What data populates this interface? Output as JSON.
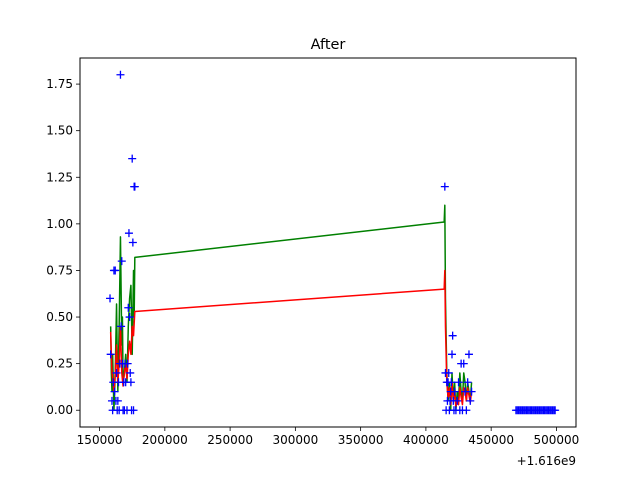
{
  "chart_data": {
    "type": "line",
    "title": "After",
    "xlabel": "",
    "ylabel": "",
    "x_offset_label": "+1.616e9",
    "xlim": [
      135000,
      515000
    ],
    "ylim": [
      -0.09,
      1.89
    ],
    "x_ticks": [
      150000,
      200000,
      250000,
      300000,
      350000,
      400000,
      450000,
      500000
    ],
    "y_ticks": [
      0.0,
      0.25,
      0.5,
      0.75,
      1.0,
      1.25,
      1.5,
      1.75
    ],
    "x_tick_labels": [
      "150000",
      "200000",
      "250000",
      "300000",
      "350000",
      "400000",
      "450000",
      "500000"
    ],
    "y_tick_labels": [
      "0.00",
      "0.25",
      "0.50",
      "0.75",
      "1.00",
      "1.25",
      "1.50",
      "1.75"
    ],
    "grid": false,
    "series": [
      {
        "style": "markers",
        "marker": "+",
        "color": "#0000ff",
        "points": [
          [
            158000,
            0.6
          ],
          [
            158500,
            0.3
          ],
          [
            159500,
            0.05
          ],
          [
            160000,
            0.0
          ],
          [
            160500,
            0.15
          ],
          [
            161000,
            0.75
          ],
          [
            161500,
            0.1
          ],
          [
            162000,
            0.75
          ],
          [
            162500,
            0.05
          ],
          [
            163000,
            0.2
          ],
          [
            163500,
            0.0
          ],
          [
            164000,
            0.05
          ],
          [
            164500,
            0.15
          ],
          [
            165000,
            0.0
          ],
          [
            165500,
            0.25
          ],
          [
            166000,
            1.8
          ],
          [
            166500,
            0.45
          ],
          [
            167000,
            0.8
          ],
          [
            167500,
            0.25
          ],
          [
            168000,
            0.0
          ],
          [
            168500,
            0.15
          ],
          [
            169000,
            0.0
          ],
          [
            169500,
            0.25
          ],
          [
            170000,
            0.15
          ],
          [
            171000,
            0.0
          ],
          [
            171500,
            0.25
          ],
          [
            172000,
            0.55
          ],
          [
            172500,
            0.95
          ],
          [
            173000,
            0.5
          ],
          [
            173500,
            0.2
          ],
          [
            174000,
            0.15
          ],
          [
            174500,
            0.0
          ],
          [
            175000,
            1.35
          ],
          [
            175500,
            0.9
          ],
          [
            176000,
            0.0
          ],
          [
            176500,
            1.2
          ],
          [
            177000,
            1.2
          ],
          [
            414500,
            1.2
          ],
          [
            415000,
            0.2
          ],
          [
            415500,
            0.0
          ],
          [
            416000,
            0.15
          ],
          [
            416500,
            0.05
          ],
          [
            417000,
            0.15
          ],
          [
            417500,
            0.2
          ],
          [
            418000,
            0.0
          ],
          [
            418500,
            0.05
          ],
          [
            419000,
            0.1
          ],
          [
            419500,
            0.15
          ],
          [
            420000,
            0.3
          ],
          [
            420500,
            0.4
          ],
          [
            421000,
            0.05
          ],
          [
            421500,
            0.0
          ],
          [
            422000,
            0.1
          ],
          [
            423000,
            0.0
          ],
          [
            424000,
            0.05
          ],
          [
            425000,
            0.15
          ],
          [
            426000,
            0.0
          ],
          [
            427000,
            0.25
          ],
          [
            428000,
            0.0
          ],
          [
            429000,
            0.25
          ],
          [
            430000,
            0.1
          ],
          [
            431000,
            0.0
          ],
          [
            432000,
            0.15
          ],
          [
            433000,
            0.3
          ],
          [
            434000,
            0.05
          ],
          [
            435000,
            0.1
          ],
          [
            469000,
            0.0
          ],
          [
            470000,
            0.0
          ],
          [
            471000,
            0.0
          ],
          [
            472000,
            0.0
          ],
          [
            473000,
            0.0
          ],
          [
            474000,
            0.0
          ],
          [
            475000,
            0.0
          ],
          [
            476000,
            0.0
          ],
          [
            477000,
            0.0
          ],
          [
            478000,
            0.0
          ],
          [
            479000,
            0.0
          ],
          [
            480000,
            0.0
          ],
          [
            481000,
            0.0
          ],
          [
            482000,
            0.0
          ],
          [
            483000,
            0.0
          ],
          [
            484000,
            0.0
          ],
          [
            485000,
            0.0
          ],
          [
            486000,
            0.0
          ],
          [
            487000,
            0.0
          ],
          [
            488000,
            0.0
          ],
          [
            489000,
            0.0
          ],
          [
            490000,
            0.0
          ],
          [
            491000,
            0.0
          ],
          [
            492000,
            0.0
          ],
          [
            493000,
            0.0
          ],
          [
            494000,
            0.0
          ],
          [
            495000,
            0.0
          ],
          [
            496000,
            0.0
          ],
          [
            497000,
            0.0
          ],
          [
            498000,
            0.0
          ],
          [
            499000,
            0.0
          ]
        ]
      },
      {
        "style": "line",
        "color": "#008000",
        "points": [
          [
            158500,
            0.45
          ],
          [
            159000,
            0.2
          ],
          [
            159500,
            0.1
          ],
          [
            160000,
            0.3
          ],
          [
            161000,
            0.0
          ],
          [
            162000,
            0.2
          ],
          [
            163000,
            0.57
          ],
          [
            163500,
            0.3
          ],
          [
            164000,
            0.1
          ],
          [
            165000,
            0.45
          ],
          [
            166000,
            0.93
          ],
          [
            167000,
            0.35
          ],
          [
            167500,
            0.5
          ],
          [
            168000,
            0.15
          ],
          [
            169000,
            0.2
          ],
          [
            170000,
            0.3
          ],
          [
            171000,
            0.15
          ],
          [
            172000,
            0.45
          ],
          [
            173000,
            0.6
          ],
          [
            174000,
            0.67
          ],
          [
            175000,
            0.3
          ],
          [
            176000,
            0.75
          ],
          [
            176500,
            0.5
          ],
          [
            177000,
            0.82
          ],
          [
            414000,
            1.01
          ],
          [
            414500,
            1.1
          ],
          [
            415000,
            0.6
          ],
          [
            416000,
            0.2
          ],
          [
            417000,
            0.05
          ],
          [
            418000,
            0.15
          ],
          [
            419000,
            0.0
          ],
          [
            420000,
            0.2
          ],
          [
            421000,
            0.05
          ],
          [
            422000,
            0.15
          ],
          [
            423000,
            0.0
          ],
          [
            424000,
            0.1
          ],
          [
            425000,
            0.05
          ],
          [
            426000,
            0.2
          ],
          [
            427000,
            0.1
          ],
          [
            428000,
            0.05
          ],
          [
            429000,
            0.2
          ],
          [
            430000,
            0.15
          ],
          [
            431000,
            0.05
          ],
          [
            432000,
            0.15
          ],
          [
            433000,
            0.1
          ],
          [
            434000,
            0.05
          ],
          [
            435000,
            0.15
          ]
        ]
      },
      {
        "style": "line",
        "color": "#ff0000",
        "points": [
          [
            158500,
            0.42
          ],
          [
            159000,
            0.3
          ],
          [
            159500,
            0.2
          ],
          [
            160000,
            0.17
          ],
          [
            161000,
            0.1
          ],
          [
            162000,
            0.2
          ],
          [
            163000,
            0.35
          ],
          [
            164000,
            0.15
          ],
          [
            165000,
            0.25
          ],
          [
            166000,
            0.45
          ],
          [
            167000,
            0.2
          ],
          [
            168000,
            0.13
          ],
          [
            169000,
            0.2
          ],
          [
            170000,
            0.25
          ],
          [
            171000,
            0.17
          ],
          [
            172000,
            0.3
          ],
          [
            173000,
            0.37
          ],
          [
            174000,
            0.3
          ],
          [
            175000,
            0.45
          ],
          [
            176000,
            0.4
          ],
          [
            177000,
            0.53
          ],
          [
            414000,
            0.65
          ],
          [
            414500,
            0.75
          ],
          [
            415000,
            0.45
          ],
          [
            416000,
            0.15
          ],
          [
            417000,
            0.07
          ],
          [
            418000,
            0.12
          ],
          [
            419000,
            0.03
          ],
          [
            420000,
            0.15
          ],
          [
            421000,
            0.05
          ],
          [
            422000,
            0.1
          ],
          [
            423000,
            0.02
          ],
          [
            424000,
            0.06
          ],
          [
            425000,
            0.03
          ],
          [
            426000,
            0.12
          ],
          [
            427000,
            0.07
          ],
          [
            428000,
            0.03
          ],
          [
            429000,
            0.12
          ],
          [
            430000,
            0.1
          ],
          [
            431000,
            0.05
          ],
          [
            432000,
            0.12
          ],
          [
            433000,
            0.08
          ],
          [
            434000,
            0.04
          ],
          [
            435000,
            0.1
          ]
        ]
      }
    ]
  }
}
